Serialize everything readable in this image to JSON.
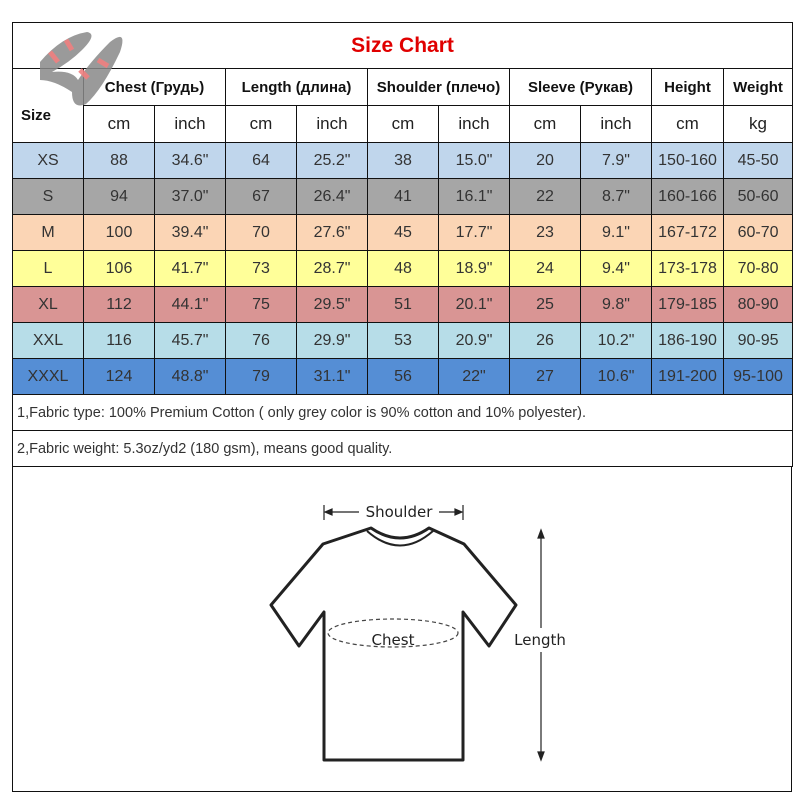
{
  "title": "Size Chart",
  "size_header": "Size",
  "groups": [
    "Chest  (Грудь)",
    "Length (длина)",
    "Shoulder (плечо)",
    "Sleeve (Рукав)",
    "Height",
    "Weight"
  ],
  "units": [
    "cm",
    "inch",
    "cm",
    "inch",
    "cm",
    "inch",
    "cm",
    "inch",
    "cm",
    "kg"
  ],
  "rows": [
    {
      "size": "XS",
      "color": "#c0d6ec",
      "values": [
        "88",
        "34.6\"",
        "64",
        "25.2\"",
        "38",
        "15.0\"",
        "20",
        "7.9\"",
        "150-160",
        "45-50"
      ]
    },
    {
      "size": "S",
      "color": "#a6a6a6",
      "values": [
        "94",
        "37.0\"",
        "67",
        "26.4\"",
        "41",
        "16.1\"",
        "22",
        "8.7\"",
        "160-166",
        "50-60"
      ]
    },
    {
      "size": "M",
      "color": "#fbd5b5",
      "values": [
        "100",
        "39.4\"",
        "70",
        "27.6\"",
        "45",
        "17.7\"",
        "23",
        "9.1\"",
        "167-172",
        "60-70"
      ]
    },
    {
      "size": "L",
      "color": "#ffff99",
      "values": [
        "106",
        "41.7\"",
        "73",
        "28.7\"",
        "48",
        "18.9\"",
        "24",
        "9.4\"",
        "173-178",
        "70-80"
      ]
    },
    {
      "size": "XL",
      "color": "#d99594",
      "values": [
        "112",
        "44.1\"",
        "75",
        "29.5\"",
        "51",
        "20.1\"",
        "25",
        "9.8\"",
        "179-185",
        "80-90"
      ]
    },
    {
      "size": "XXL",
      "color": "#b7dde8",
      "values": [
        "116",
        "45.7\"",
        "76",
        "29.9\"",
        "53",
        "20.9\"",
        "26",
        "10.2\"",
        "186-190",
        "90-95"
      ]
    },
    {
      "size": "XXXL",
      "color": "#558ed5",
      "values": [
        "124",
        "48.8\"",
        "79",
        "31.1\"",
        "56",
        "22\"",
        "27",
        "10.6\"",
        "191-200",
        "95-100"
      ]
    }
  ],
  "notes": [
    "1,Fabric type: 100% Premium Cotton ( only grey color is 90% cotton and 10% polyester).",
    "2,Fabric weight: 5.3oz/yd2 (180 gsm), means good quality."
  ],
  "diagram": {
    "shoulder": "Shoulder",
    "chest": "Chest",
    "length": "Length"
  }
}
